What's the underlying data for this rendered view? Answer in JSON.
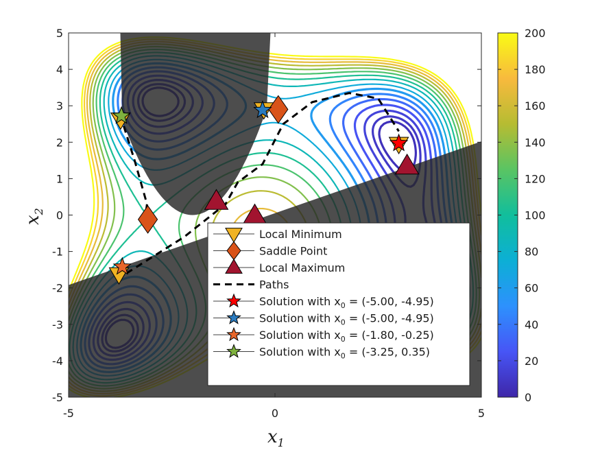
{
  "chart_data": {
    "type": "contour",
    "xlabel": "x",
    "xlabel_sub": "1",
    "ylabel": "x",
    "ylabel_sub": "2",
    "xlim": [
      -5,
      5
    ],
    "ylim": [
      -5,
      5
    ],
    "xticks": [
      "-5",
      "0",
      "5"
    ],
    "yticks": [
      "5",
      "4",
      "3",
      "2",
      "1",
      "0",
      "-1",
      "-2",
      "-3",
      "-4",
      "-5"
    ],
    "colorbar": {
      "range": [
        0,
        200
      ],
      "ticks": [
        "200",
        "180",
        "160",
        "140",
        "120",
        "100",
        "80",
        "60",
        "40",
        "20",
        "0"
      ],
      "colormap": [
        "#3e26a8",
        "#4755f6",
        "#2d91fd",
        "#0cafd5",
        "#11be9c",
        "#5ac463",
        "#b6bc32",
        "#f8ba3d",
        "#f9fb15"
      ]
    },
    "contour_levels": [
      6,
      10,
      16,
      24,
      34,
      45,
      58,
      72,
      88,
      104,
      120,
      136,
      152,
      168,
      184,
      200
    ],
    "local_minima": [
      [
        -3.78,
        -1.63
      ],
      [
        -3.74,
        2.62
      ],
      [
        3.0,
        1.95
      ],
      [
        -0.27,
        2.9
      ]
    ],
    "saddle_points": [
      [
        -3.08,
        -0.12
      ],
      [
        0.08,
        2.9
      ]
    ],
    "local_maxima": [
      [
        -1.42,
        0.38
      ],
      [
        -0.49,
        -0.02
      ],
      [
        3.2,
        1.35
      ]
    ],
    "paths": [
      [
        [
          -3.75,
          2.75
        ],
        [
          -3.4,
          1.5
        ],
        [
          -3.1,
          0.3
        ],
        [
          -3.15,
          -0.1
        ]
      ],
      [
        [
          -3.6,
          -1.6
        ],
        [
          -2.2,
          -0.6
        ],
        [
          -1.2,
          0.3
        ],
        [
          -0.9,
          0.9
        ],
        [
          -0.3,
          1.4
        ],
        [
          0.2,
          2.5
        ],
        [
          0.9,
          3.1
        ],
        [
          1.8,
          3.35
        ],
        [
          2.5,
          3.2
        ],
        [
          3.0,
          2.3
        ]
      ]
    ],
    "solutions": [
      {
        "label": "Solution with x",
        "sub": "0",
        "rest": " = (-5.00, -4.95)",
        "color": "#ff0000",
        "point": [
          3.0,
          1.97
        ]
      },
      {
        "label": "Solution with x",
        "sub": "0",
        "rest": " = (-5.00, -4.95)",
        "color": "#2b7bbf",
        "point": [
          -0.3,
          2.88
        ]
      },
      {
        "label": "Solution with x",
        "sub": "0",
        "rest": " = (-1.80, -0.25)",
        "color": "#e8662a",
        "point": [
          -3.7,
          -1.42
        ]
      },
      {
        "label": "Solution with x",
        "sub": "0",
        "rest": " = (-3.25, 0.35)",
        "color": "#7fb23e",
        "point": [
          -3.72,
          2.72
        ]
      }
    ],
    "legend": {
      "placement": "lower-right",
      "entries": [
        {
          "label": "Local Minimum",
          "marker": "triangle-down",
          "color": "#f0b323"
        },
        {
          "label": "Saddle Point",
          "marker": "diamond",
          "color": "#d95319"
        },
        {
          "label": "Local Maximum",
          "marker": "triangle-up",
          "color": "#a2142f"
        },
        {
          "label": "Paths",
          "marker": "dashed-line",
          "color": "#000000"
        }
      ]
    },
    "grid": false
  }
}
